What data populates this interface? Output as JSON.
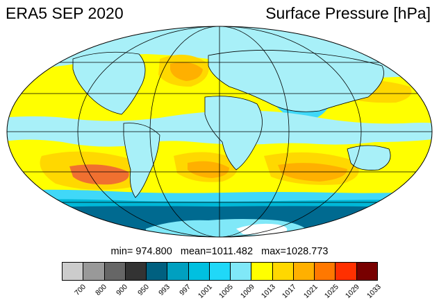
{
  "header": {
    "left_title": "ERA5 SEP 2020",
    "right_title": "Surface Pressure [hPa]"
  },
  "stats": {
    "text": "min= 974.800   mean=1011.482   max=1028.773"
  },
  "colorbar": {
    "colors": [
      "#cccccc",
      "#999999",
      "#666666",
      "#333333",
      "#006080",
      "#00a0c0",
      "#00c0e0",
      "#20d8f8",
      "#80e8f8",
      "#ffff00",
      "#ffd800",
      "#ffb000",
      "#ff7800",
      "#ff3000",
      "#780000"
    ],
    "labels": [
      "700",
      "800",
      "900",
      "950",
      "993",
      "997",
      "1001",
      "1005",
      "1009",
      "1013",
      "1017",
      "1021",
      "1025",
      "1029",
      "1033"
    ]
  },
  "palette": {
    "cyan_light": "#a8f0f8",
    "cyan": "#40d8f8",
    "teal": "#00b8d8",
    "dark_teal": "#006a90",
    "yellow": "#ffff00",
    "gold": "#ffd800",
    "orange": "#ffb000",
    "red_orange": "#f07030"
  }
}
